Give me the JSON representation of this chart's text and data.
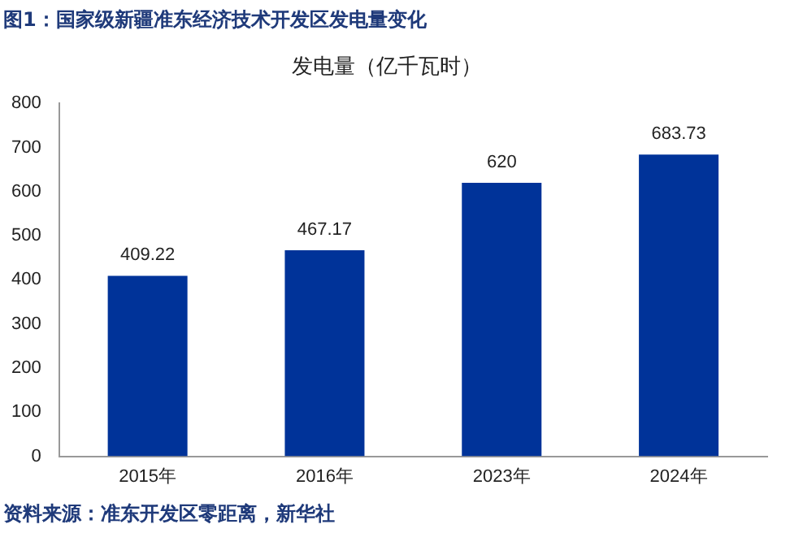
{
  "chart_data": {
    "type": "bar",
    "title": "图1：国家级新疆准东经济技术开发区发电量变化",
    "subtitle": "发电量（亿千瓦时）",
    "categories": [
      "2015年",
      "2016年",
      "2023年",
      "2024年"
    ],
    "values": [
      409.22,
      467.17,
      620,
      683.73
    ],
    "color": "#003399",
    "ylim": [
      0,
      800
    ],
    "yticks": [
      0,
      100,
      200,
      300,
      400,
      500,
      600,
      700,
      800
    ],
    "grid": false,
    "legend": false,
    "data_labels": true,
    "annotations": [
      "资料来源：准东开发区零距离，新华社"
    ]
  }
}
